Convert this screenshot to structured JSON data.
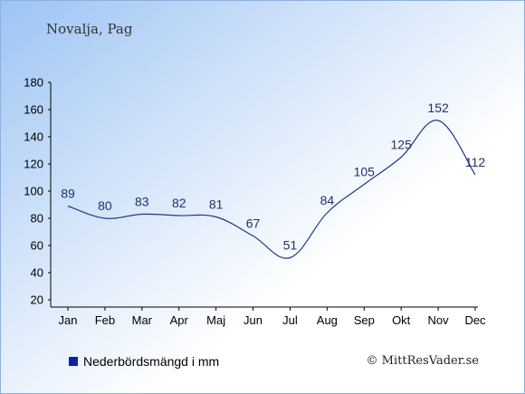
{
  "header": {
    "title": "Novalja, Pag"
  },
  "legend": {
    "label": "Nederbördsmängd i mm"
  },
  "footer": {
    "copyright": "© MittResVader.se"
  },
  "colors": {
    "line": "#1a3a8c",
    "legend_swatch": "#0b1fa8",
    "label": "#1f2f6f"
  },
  "chart_data": {
    "type": "line",
    "categories": [
      "Jan",
      "Feb",
      "Mar",
      "Apr",
      "Maj",
      "Jun",
      "Jul",
      "Aug",
      "Sep",
      "Okt",
      "Nov",
      "Dec"
    ],
    "series": [
      {
        "name": "Nederbördsmängd i mm",
        "values": [
          89,
          80,
          83,
          82,
          81,
          67,
          51,
          84,
          105,
          125,
          152,
          112
        ]
      }
    ],
    "yticks": [
      20,
      40,
      60,
      80,
      100,
      120,
      140,
      160,
      180
    ],
    "ylim": [
      20,
      180
    ],
    "grid": false,
    "legend_position": "bottom-left"
  }
}
